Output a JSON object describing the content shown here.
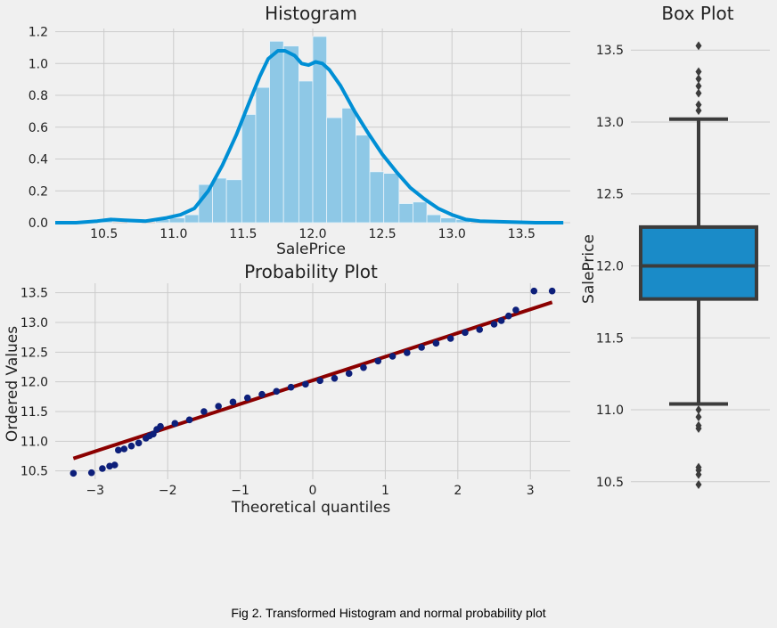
{
  "caption": "Fig 2. Transformed Histogram and normal probability plot",
  "colors": {
    "background": "#f0f0f0",
    "grid": "#cbcbcb",
    "hist_fill": "#8ec8e6",
    "kde_line": "#008fd5",
    "points": "#0d1f7a",
    "fit_line": "#8b0000",
    "box_fill": "#1a8bc8",
    "box_edge": "#3c3c3c"
  },
  "chart_data": [
    {
      "type": "bar",
      "subtype": "histogram-with-kde",
      "title": "Histogram",
      "xlabel": "SalePrice",
      "ylabel": "",
      "xlim": [
        10.15,
        13.85
      ],
      "ylim": [
        0,
        1.22
      ],
      "xticks": [
        "10.5",
        "11.0",
        "11.5",
        "12.0",
        "12.5",
        "13.0",
        "13.5"
      ],
      "yticks": [
        "0.0",
        "0.2",
        "0.4",
        "0.6",
        "0.8",
        "1.0",
        "1.2"
      ],
      "grid": true,
      "bin_edges": [
        10.46,
        10.56,
        10.67,
        10.77,
        10.87,
        10.97,
        11.08,
        11.18,
        11.28,
        11.38,
        11.49,
        11.59,
        11.69,
        11.79,
        11.9,
        12.0,
        12.1,
        12.21,
        12.31,
        12.41,
        12.51,
        12.62,
        12.72,
        12.82,
        12.92,
        13.03,
        13.13
      ],
      "bin_heights": [
        0.02,
        0.0,
        0.02,
        0.0,
        0.02,
        0.03,
        0.05,
        0.24,
        0.28,
        0.27,
        0.68,
        0.85,
        1.14,
        1.11,
        0.89,
        1.17,
        0.66,
        0.72,
        0.55,
        0.32,
        0.31,
        0.12,
        0.13,
        0.05,
        0.03,
        0.02
      ],
      "kde": {
        "x": [
          10.15,
          10.3,
          10.45,
          10.55,
          10.65,
          10.8,
          10.95,
          11.05,
          11.15,
          11.25,
          11.35,
          11.45,
          11.55,
          11.62,
          11.68,
          11.75,
          11.8,
          11.87,
          11.92,
          11.97,
          12.02,
          12.07,
          12.12,
          12.2,
          12.3,
          12.4,
          12.5,
          12.6,
          12.7,
          12.8,
          12.9,
          13.0,
          13.1,
          13.2,
          13.4,
          13.6,
          13.8
        ],
        "y": [
          0.0,
          0.0,
          0.01,
          0.02,
          0.015,
          0.01,
          0.03,
          0.05,
          0.09,
          0.2,
          0.36,
          0.55,
          0.77,
          0.92,
          1.03,
          1.08,
          1.08,
          1.05,
          1.0,
          0.99,
          1.01,
          1.0,
          0.96,
          0.86,
          0.7,
          0.56,
          0.43,
          0.32,
          0.22,
          0.15,
          0.09,
          0.05,
          0.02,
          0.01,
          0.005,
          0.0,
          0.0
        ]
      }
    },
    {
      "type": "scatter",
      "subtype": "probability-plot",
      "title": "Probability Plot",
      "xlabel": "Theoretical quantiles",
      "ylabel": "Ordered Values",
      "xlim": [
        -3.55,
        3.55
      ],
      "ylim": [
        10.36,
        13.66
      ],
      "xticks": [
        "−3",
        "−2",
        "−1",
        "0",
        "1",
        "2",
        "3"
      ],
      "yticks": [
        "10.5",
        "11.0",
        "11.5",
        "12.0",
        "12.5",
        "13.0",
        "13.5"
      ],
      "grid": true,
      "fit_line": {
        "x": [
          -3.3,
          3.3
        ],
        "y": [
          10.71,
          13.34
        ]
      },
      "points": {
        "x": [
          -3.3,
          -3.05,
          -2.9,
          -2.8,
          -2.73,
          -2.68,
          -2.6,
          -2.5,
          -2.4,
          -2.3,
          -2.25,
          -2.2,
          -2.15,
          -2.1,
          -1.9,
          -1.7,
          -1.5,
          -1.3,
          -1.1,
          -0.9,
          -0.7,
          -0.5,
          -0.3,
          -0.1,
          0.1,
          0.3,
          0.5,
          0.7,
          0.9,
          1.1,
          1.3,
          1.5,
          1.7,
          1.9,
          2.1,
          2.3,
          2.5,
          2.6,
          2.7,
          2.8,
          3.05,
          3.3
        ],
        "y": [
          10.46,
          10.47,
          10.54,
          10.58,
          10.6,
          10.85,
          10.87,
          10.92,
          10.97,
          11.05,
          11.09,
          11.12,
          11.2,
          11.25,
          11.3,
          11.36,
          11.5,
          11.59,
          11.66,
          11.73,
          11.79,
          11.84,
          11.91,
          11.96,
          12.02,
          12.06,
          12.14,
          12.24,
          12.35,
          12.43,
          12.49,
          12.58,
          12.65,
          12.73,
          12.83,
          12.88,
          12.97,
          13.03,
          13.11,
          13.21,
          13.53,
          13.53
        ]
      }
    },
    {
      "type": "box",
      "title": "Box Plot",
      "xlabel": "",
      "ylabel": "SalePrice",
      "ylim": [
        10.35,
        13.65
      ],
      "yticks": [
        "10.5",
        "11.0",
        "11.5",
        "12.0",
        "12.5",
        "13.0",
        "13.5"
      ],
      "grid": true,
      "whisker_low": 11.04,
      "q1": 11.77,
      "median": 12.0,
      "q3": 12.27,
      "whisker_high": 13.02,
      "outliers": [
        13.53,
        13.35,
        13.3,
        13.25,
        13.2,
        13.12,
        13.08,
        11.0,
        10.95,
        10.89,
        10.87,
        10.6,
        10.58,
        10.55,
        10.48
      ]
    }
  ]
}
